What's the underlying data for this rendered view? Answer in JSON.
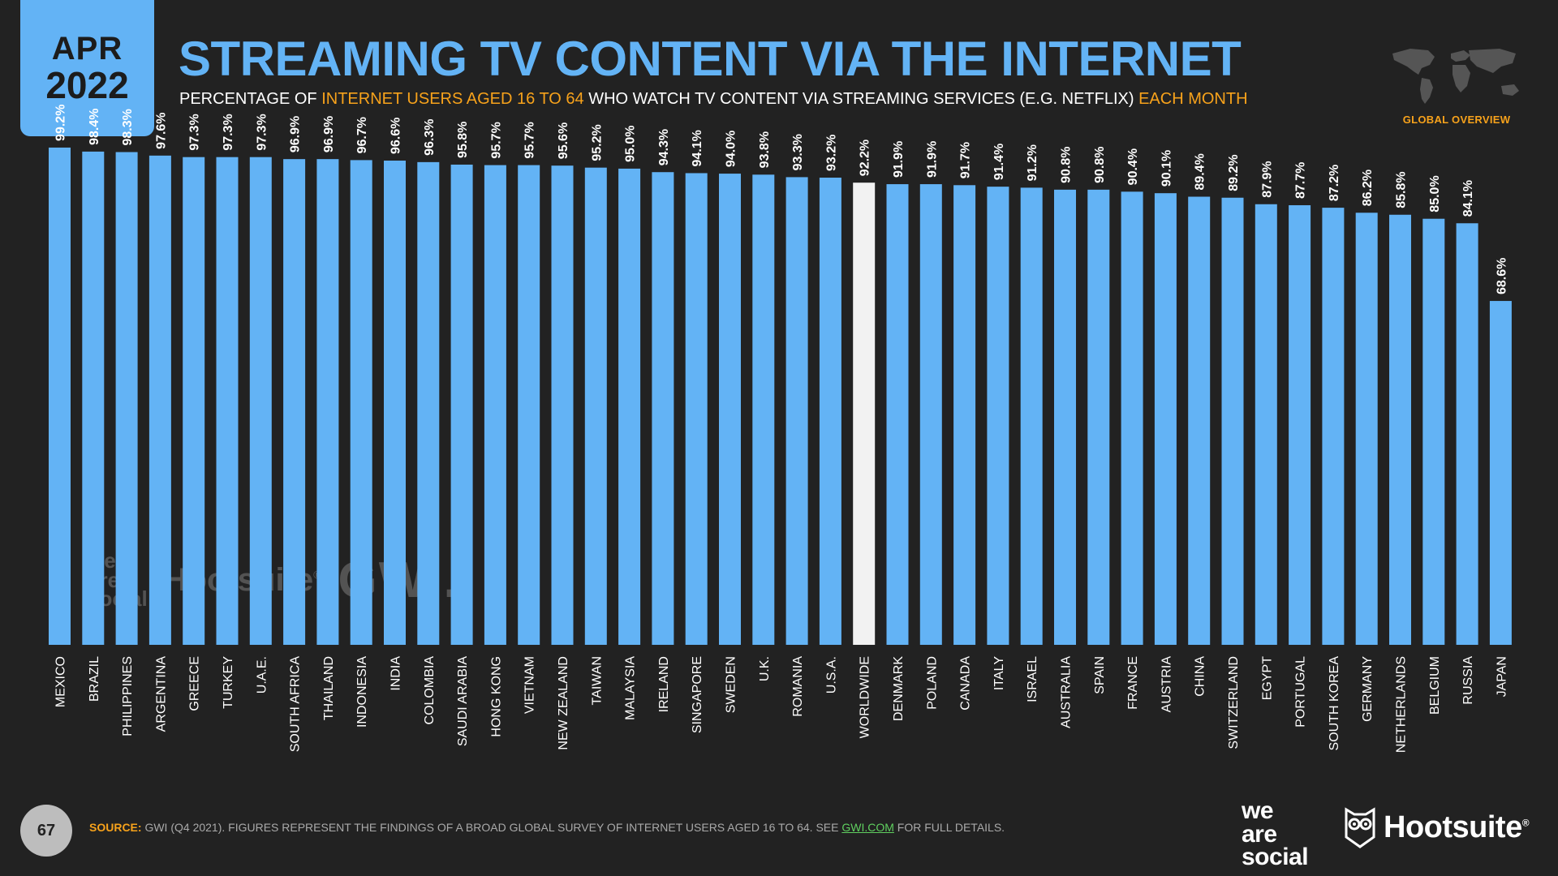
{
  "header": {
    "month": "APR",
    "year": "2022",
    "title": "STREAMING TV CONTENT VIA THE INTERNET",
    "subtitle_parts": [
      "PERCENTAGE OF ",
      "INTERNET USERS AGED 16 TO 64",
      " WHO WATCH TV CONTENT VIA STREAMING SERVICES (E.G. NETFLIX) ",
      "EACH MONTH"
    ],
    "region_label": "GLOBAL OVERVIEW"
  },
  "footer": {
    "page_number": "67",
    "source_label": "SOURCE:",
    "source_text": " GWI (Q4 2021). FIGURES REPRESENT THE FINDINGS OF A BROAD GLOBAL SURVEY OF INTERNET USERS AGED 16 TO 64. SEE ",
    "source_link": "GWI.COM",
    "source_tail": " FOR FULL DETAILS.",
    "logo_we": "we",
    "logo_are": "are",
    "logo_social": "social",
    "logo_hootsuite": "Hootsuite",
    "logo_registered": "®"
  },
  "watermark": {
    "we": "we",
    "are": "are",
    "social": "social",
    "hootsuite": "Hootsuite",
    "registered": "®",
    "gwi": "GWI."
  },
  "colors": {
    "background": "#222222",
    "bar": "#63b3f5",
    "highlight_bar": "#f2f2f2",
    "accent": "#f7a21b",
    "title": "#63b3f5"
  },
  "chart_data": {
    "type": "bar",
    "title": "STREAMING TV CONTENT VIA THE INTERNET",
    "xlabel": "",
    "ylabel": "",
    "ylim": [
      0,
      100
    ],
    "value_suffix": "%",
    "highlight": "WORLDWIDE",
    "categories": [
      "MEXICO",
      "BRAZIL",
      "PHILIPPINES",
      "ARGENTINA",
      "GREECE",
      "TURKEY",
      "U.A.E.",
      "SOUTH AFRICA",
      "THAILAND",
      "INDONESIA",
      "INDIA",
      "COLOMBIA",
      "SAUDI ARABIA",
      "HONG KONG",
      "VIETNAM",
      "NEW ZEALAND",
      "TAIWAN",
      "MALAYSIA",
      "IRELAND",
      "SINGAPORE",
      "SWEDEN",
      "U.K.",
      "ROMANIA",
      "U.S.A.",
      "WORLDWIDE",
      "DENMARK",
      "POLAND",
      "CANADA",
      "ITALY",
      "ISRAEL",
      "AUSTRALIA",
      "SPAIN",
      "FRANCE",
      "AUSTRIA",
      "CHINA",
      "SWITZERLAND",
      "EGYPT",
      "PORTUGAL",
      "SOUTH KOREA",
      "GERMANY",
      "NETHERLANDS",
      "BELGIUM",
      "RUSSIA",
      "JAPAN"
    ],
    "values": [
      99.2,
      98.4,
      98.3,
      97.6,
      97.3,
      97.3,
      97.3,
      96.9,
      96.9,
      96.7,
      96.6,
      96.3,
      95.8,
      95.7,
      95.7,
      95.6,
      95.2,
      95.0,
      94.3,
      94.1,
      94.0,
      93.8,
      93.3,
      93.2,
      92.2,
      91.9,
      91.9,
      91.7,
      91.4,
      91.2,
      90.8,
      90.8,
      90.4,
      90.1,
      89.4,
      89.2,
      87.9,
      87.7,
      87.2,
      86.2,
      85.8,
      85.0,
      84.1,
      68.6
    ]
  }
}
